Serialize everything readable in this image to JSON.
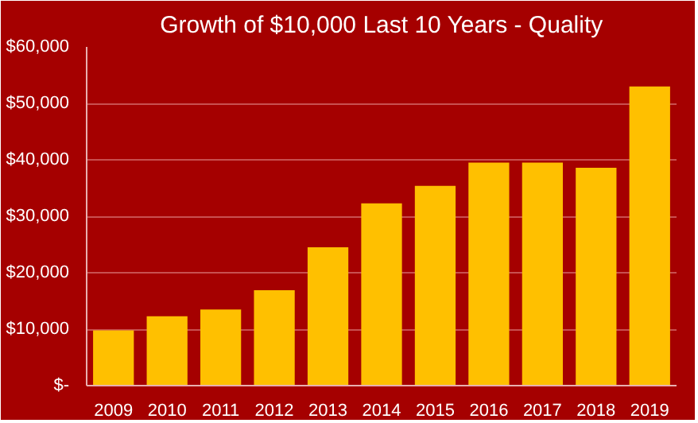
{
  "chart_data": {
    "type": "bar",
    "title": "Growth of $10,000 Last 10 Years - Quality",
    "categories": [
      "2009",
      "2010",
      "2011",
      "2012",
      "2013",
      "2014",
      "2015",
      "2016",
      "2017",
      "2018",
      "2019"
    ],
    "values": [
      9800,
      12300,
      13500,
      16900,
      24500,
      32300,
      35400,
      39500,
      39500,
      38600,
      53000
    ],
    "color": "#ffc000",
    "ylim": [
      0,
      60000
    ],
    "yticks": [
      {
        "value": 0,
        "label": "$-"
      },
      {
        "value": 10000,
        "label": "$10,000"
      },
      {
        "value": 20000,
        "label": "$20,000"
      },
      {
        "value": 30000,
        "label": "$30,000"
      },
      {
        "value": 40000,
        "label": "$40,000"
      },
      {
        "value": 50000,
        "label": "$50,000"
      },
      {
        "value": 60000,
        "label": "$60,000"
      }
    ],
    "grid": "y"
  }
}
